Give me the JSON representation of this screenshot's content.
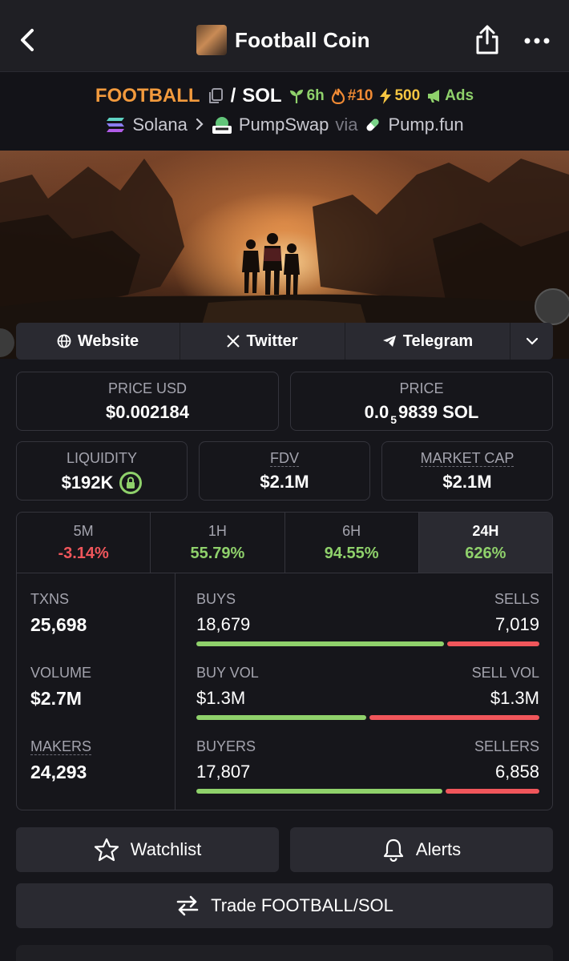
{
  "header": {
    "title": "Football Coin",
    "back_icon": "chevron-left-icon",
    "share_icon": "share-icon",
    "more_icon": "more-horizontal-icon"
  },
  "pair": {
    "base": "FOOTBALL",
    "separator": "/",
    "quote": "SOL",
    "age": "6h",
    "rank": "#10",
    "boost": "500",
    "ads": "Ads",
    "chain": "Solana",
    "dex": "PumpSwap",
    "via": "via",
    "launchpad": "Pump.fun"
  },
  "links": {
    "website": "Website",
    "twitter": "Twitter",
    "telegram": "Telegram"
  },
  "stats": {
    "price_usd_label": "PRICE USD",
    "price_usd": "$0.002184",
    "price_label": "PRICE",
    "price_prefix": "0.0",
    "price_sub": "5",
    "price_suffix": "9839 SOL",
    "liquidity_label": "LIQUIDITY",
    "liquidity": "$192K",
    "fdv_label": "FDV",
    "fdv": "$2.1M",
    "mcap_label": "MARKET CAP",
    "mcap": "$2.1M"
  },
  "periods": [
    {
      "label": "5M",
      "value": "-3.14%"
    },
    {
      "label": "1H",
      "value": "55.79%"
    },
    {
      "label": "6H",
      "value": "94.55%"
    },
    {
      "label": "24H",
      "value": "626%"
    }
  ],
  "activity": {
    "txns_label": "TXNS",
    "txns": "25,698",
    "volume_label": "VOLUME",
    "volume": "$2.7M",
    "makers_label": "MAKERS",
    "makers": "24,293",
    "buys_label": "BUYS",
    "buys": "18,679",
    "sells_label": "SELLS",
    "sells": "7,019",
    "buy_share": 0.727,
    "buyvol_label": "BUY VOL",
    "buyvol": "$1.3M",
    "sellvol_label": "SELL VOL",
    "sellvol": "$1.3M",
    "buyvol_share": 0.5,
    "buyers_label": "BUYERS",
    "buyers": "17,807",
    "sellers_label": "SELLERS",
    "sellers": "6,858",
    "buyers_share": 0.722
  },
  "actions": {
    "watchlist": "Watchlist",
    "alerts": "Alerts",
    "trade": "Trade FOOTBALL/SOL"
  },
  "colors": {
    "buy": "#8fd16b",
    "sell": "#f0565b",
    "base_symbol": "#f29a3d"
  }
}
